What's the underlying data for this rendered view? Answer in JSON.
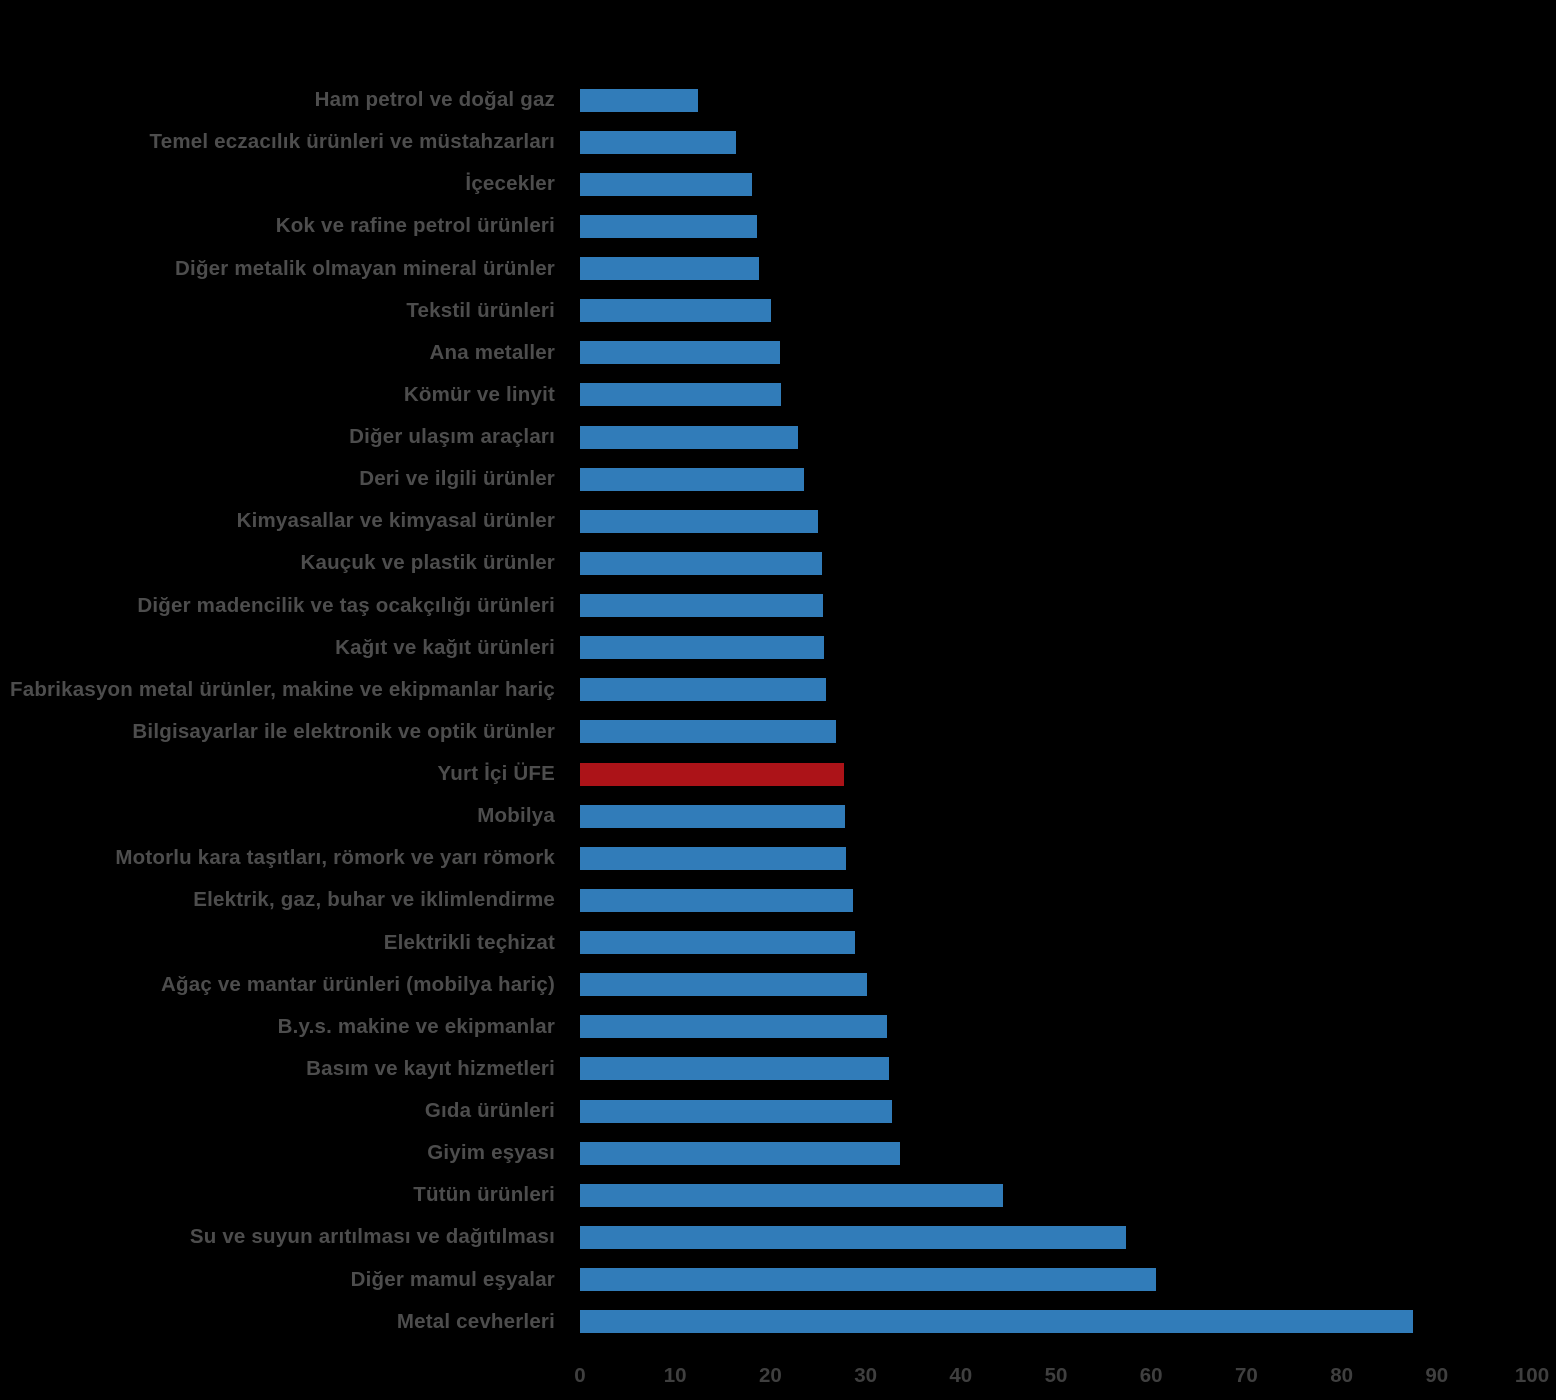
{
  "chart_data": {
    "type": "bar",
    "orientation": "horizontal",
    "title": "",
    "xlabel": "",
    "ylabel": "",
    "xlim": [
      0,
      100
    ],
    "x_ticks": [
      0,
      10,
      20,
      30,
      40,
      50,
      60,
      70,
      80,
      90,
      100
    ],
    "grid": false,
    "legend": "none",
    "categories": [
      "Ham petrol ve doğal gaz",
      "Temel eczacılık ürünleri ve müstahzarları",
      "İçecekler",
      "Kok ve rafine petrol ürünleri",
      "Diğer metalik olmayan mineral ürünler",
      "Tekstil ürünleri",
      "Ana metaller",
      "Kömür ve linyit",
      "Diğer ulaşım araçları",
      "Deri ve ilgili ürünler",
      "Kimyasallar ve kimyasal ürünler",
      "Kauçuk ve plastik ürünler",
      "Diğer madencilik ve taş ocakçılığı ürünleri",
      "Kağıt ve kağıt ürünleri",
      "Fabrikasyon metal ürünler, makine ve ekipmanlar hariç",
      "Bilgisayarlar ile elektronik ve optik ürünler",
      "Yurt İçi ÜFE",
      "Mobilya",
      "Motorlu kara taşıtları, römork ve yarı römork",
      "Elektrik, gaz, buhar ve iklimlendirme",
      "Elektrikli teçhizat",
      "Ağaç ve mantar ürünleri (mobilya hariç)",
      "B.y.s. makine ve ekipmanlar",
      "Basım ve kayıt hizmetleri",
      "Gıda ürünleri",
      "Giyim eşyası",
      "Tütün ürünleri",
      "Su ve suyun arıtılması ve dağıtılması",
      "Diğer mamul eşyalar",
      "Metal cevherleri"
    ],
    "values": [
      12.4,
      16.4,
      18.1,
      18.6,
      18.8,
      20.1,
      21.0,
      21.1,
      22.9,
      23.5,
      25.0,
      25.4,
      25.5,
      25.6,
      25.8,
      26.9,
      27.7,
      27.8,
      27.9,
      28.7,
      28.9,
      30.1,
      32.2,
      32.5,
      32.8,
      33.6,
      44.4,
      57.4,
      60.5,
      87.5
    ],
    "highlight_category": "Yurt İçi ÜFE",
    "highlight_index": 16,
    "colors": {
      "bar": "#317CB9",
      "highlight_bar": "#AC1318",
      "category_label_text": "#4D4D4D",
      "axis_tick_text": "#3F3F3F",
      "background": "#000000"
    }
  }
}
